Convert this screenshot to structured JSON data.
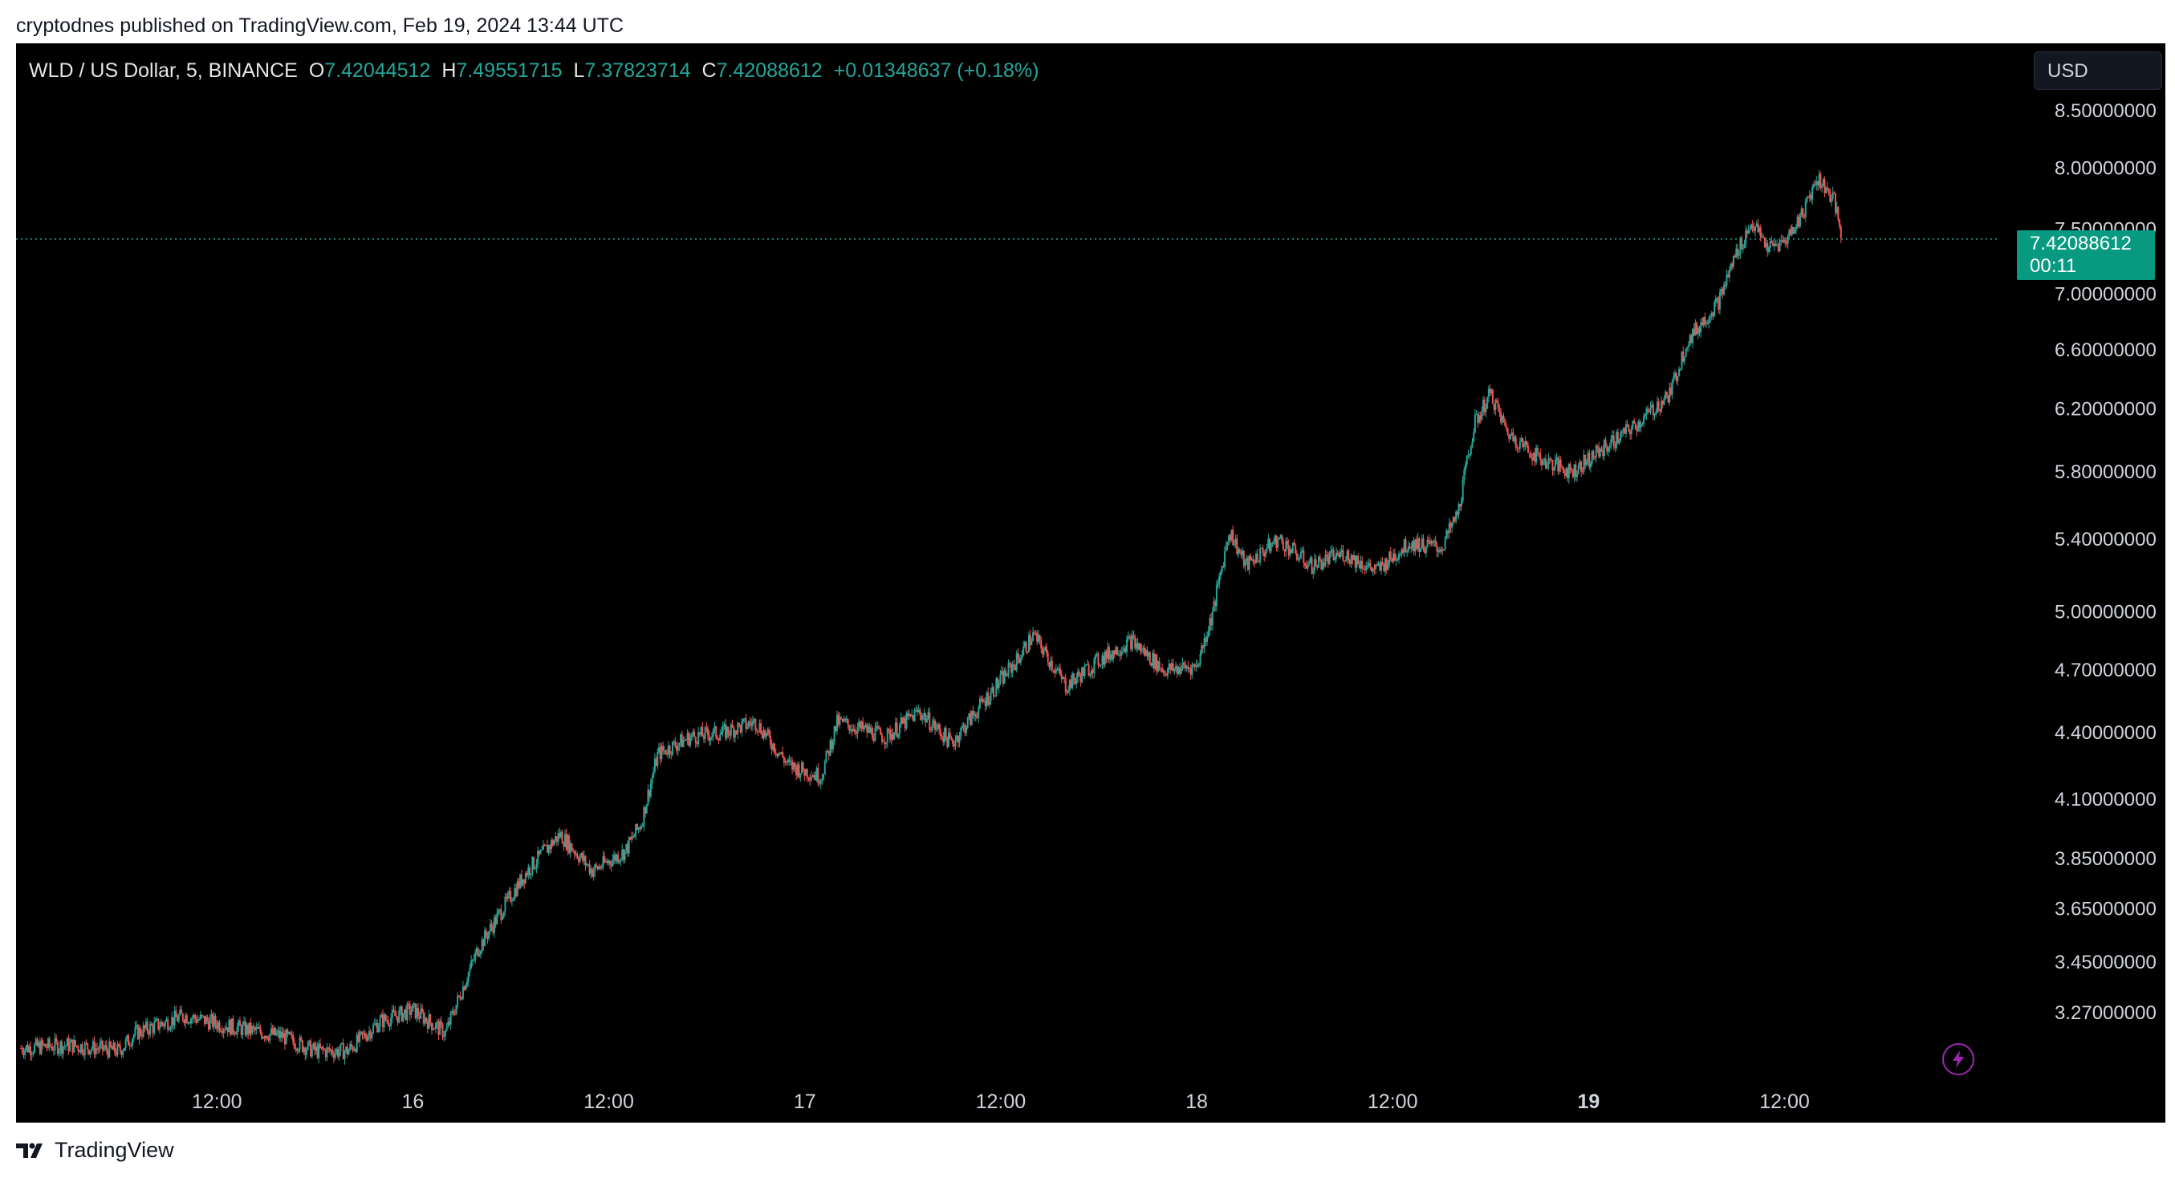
{
  "caption": "cryptodnes published on TradingView.com, Feb 19, 2024 13:44 UTC",
  "legend": {
    "symbol": "WLD / US Dollar, 5, BINANCE",
    "o_label": "O",
    "o_value": "7.42044512",
    "h_label": "H",
    "h_value": "7.49551715",
    "l_label": "L",
    "l_value": "7.37823714",
    "c_label": "C",
    "c_value": "7.42088612",
    "change": "+0.01348637 (+0.18%)"
  },
  "currency_button": "USD",
  "price_badge": {
    "price": "7.42088612",
    "countdown": "00:11"
  },
  "footer_brand": "TradingView",
  "colors": {
    "up": "#26a69a",
    "down": "#ef5350",
    "background": "#000000",
    "badge": "#089981",
    "bolt": "#9c27b0"
  },
  "chart_data": {
    "type": "candlestick",
    "symbol": "WLD / US Dollar",
    "interval": "5",
    "exchange": "BINANCE",
    "y_scale": "log",
    "ylim": [
      3.05,
      8.9
    ],
    "y_ticks": [
      "8.50000000",
      "8.00000000",
      "7.50000000",
      "7.00000000",
      "6.60000000",
      "6.20000000",
      "5.80000000",
      "5.40000000",
      "5.00000000",
      "4.70000000",
      "4.40000000",
      "4.10000000",
      "3.85000000",
      "3.65000000",
      "3.45000000",
      "3.27000000"
    ],
    "x_ticks": [
      {
        "label": "12:00",
        "t": 12
      },
      {
        "label": "16",
        "t": 24
      },
      {
        "label": "12:00",
        "t": 36
      },
      {
        "label": "17",
        "t": 48
      },
      {
        "label": "12:00",
        "t": 60
      },
      {
        "label": "18",
        "t": 72
      },
      {
        "label": "12:00",
        "t": 84
      },
      {
        "label": "19",
        "t": 96
      },
      {
        "label": "12:00",
        "t": 108
      }
    ],
    "x_units": "hours since Feb 15 00:00 UTC",
    "last_price": 7.42088612,
    "price_path": [
      {
        "t": 0,
        "p": 3.15
      },
      {
        "t": 3,
        "p": 3.16
      },
      {
        "t": 6,
        "p": 3.14
      },
      {
        "t": 7,
        "p": 3.2
      },
      {
        "t": 10,
        "p": 3.26
      },
      {
        "t": 13,
        "p": 3.22
      },
      {
        "t": 16,
        "p": 3.19
      },
      {
        "t": 18,
        "p": 3.14
      },
      {
        "t": 20,
        "p": 3.14
      },
      {
        "t": 22,
        "p": 3.24
      },
      {
        "t": 24,
        "p": 3.28
      },
      {
        "t": 26,
        "p": 3.2
      },
      {
        "t": 28,
        "p": 3.5
      },
      {
        "t": 31,
        "p": 3.8
      },
      {
        "t": 33,
        "p": 3.95
      },
      {
        "t": 35,
        "p": 3.8
      },
      {
        "t": 37,
        "p": 3.88
      },
      {
        "t": 38,
        "p": 4.0
      },
      {
        "t": 39,
        "p": 4.3
      },
      {
        "t": 41,
        "p": 4.38
      },
      {
        "t": 43,
        "p": 4.4
      },
      {
        "t": 45,
        "p": 4.45
      },
      {
        "t": 47,
        "p": 4.25
      },
      {
        "t": 49,
        "p": 4.2
      },
      {
        "t": 50,
        "p": 4.45
      },
      {
        "t": 53,
        "p": 4.38
      },
      {
        "t": 55,
        "p": 4.5
      },
      {
        "t": 57,
        "p": 4.35
      },
      {
        "t": 59,
        "p": 4.55
      },
      {
        "t": 61,
        "p": 4.75
      },
      {
        "t": 62,
        "p": 4.88
      },
      {
        "t": 64,
        "p": 4.62
      },
      {
        "t": 66,
        "p": 4.75
      },
      {
        "t": 68,
        "p": 4.85
      },
      {
        "t": 70,
        "p": 4.7
      },
      {
        "t": 72,
        "p": 4.72
      },
      {
        "t": 73,
        "p": 5.0
      },
      {
        "t": 74,
        "p": 5.45
      },
      {
        "t": 75,
        "p": 5.25
      },
      {
        "t": 77,
        "p": 5.4
      },
      {
        "t": 79,
        "p": 5.25
      },
      {
        "t": 81,
        "p": 5.32
      },
      {
        "t": 83,
        "p": 5.22
      },
      {
        "t": 85,
        "p": 5.38
      },
      {
        "t": 87,
        "p": 5.35
      },
      {
        "t": 88,
        "p": 5.55
      },
      {
        "t": 89,
        "p": 6.1
      },
      {
        "t": 90,
        "p": 6.3
      },
      {
        "t": 91,
        "p": 6.05
      },
      {
        "t": 93,
        "p": 5.88
      },
      {
        "t": 95,
        "p": 5.8
      },
      {
        "t": 97,
        "p": 5.95
      },
      {
        "t": 99,
        "p": 6.1
      },
      {
        "t": 101,
        "p": 6.3
      },
      {
        "t": 102,
        "p": 6.65
      },
      {
        "t": 104,
        "p": 6.95
      },
      {
        "t": 105,
        "p": 7.3
      },
      {
        "t": 106,
        "p": 7.55
      },
      {
        "t": 107,
        "p": 7.35
      },
      {
        "t": 108,
        "p": 7.4
      },
      {
        "t": 109,
        "p": 7.6
      },
      {
        "t": 110,
        "p": 7.92
      },
      {
        "t": 111,
        "p": 7.75
      },
      {
        "t": 111.5,
        "p": 7.42
      }
    ]
  }
}
